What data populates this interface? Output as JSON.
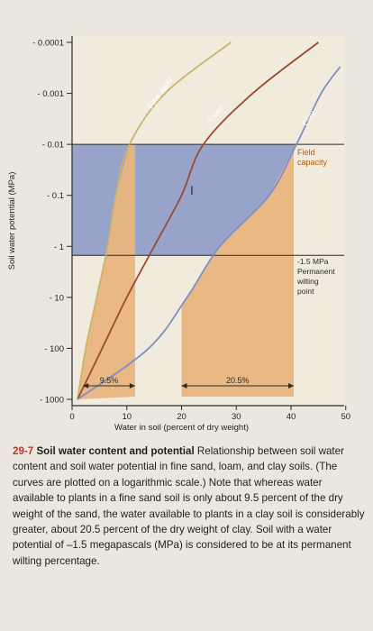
{
  "chart_data": {
    "type": "line",
    "title": "",
    "xlabel": "Water in soil (percent of dry weight)",
    "ylabel": "Soil water potential (MPa)",
    "x_ticks": [
      0,
      10,
      20,
      30,
      40,
      50
    ],
    "xlim": [
      0,
      50
    ],
    "y_scale": "log",
    "y_ticks": [
      {
        "value": -0.0001,
        "label": "- 0.0001"
      },
      {
        "value": -0.001,
        "label": "- 0.001"
      },
      {
        "value": -0.01,
        "label": "- 0.01"
      },
      {
        "value": -0.1,
        "label": "- 0.1"
      },
      {
        "value": -1,
        "label": "- 1"
      },
      {
        "value": -10,
        "label": "- 10"
      },
      {
        "value": -100,
        "label": "- 100"
      },
      {
        "value": -1000,
        "label": "- 1000"
      }
    ],
    "series": [
      {
        "name": "Fine sand",
        "color": "#c9b46a",
        "points": [
          [
            1,
            -1000
          ],
          [
            2.5,
            -100
          ],
          [
            4.5,
            -10
          ],
          [
            6.5,
            -1
          ],
          [
            8,
            -0.1
          ],
          [
            10.5,
            -0.01
          ],
          [
            17,
            -0.001
          ],
          [
            29,
            -0.0001
          ]
        ]
      },
      {
        "name": "Loam",
        "color": "#9a4a2e",
        "points": [
          [
            1,
            -1000
          ],
          [
            5.5,
            -100
          ],
          [
            10,
            -10
          ],
          [
            15,
            -1
          ],
          [
            20,
            -0.1
          ],
          [
            24,
            -0.01
          ],
          [
            33,
            -0.001
          ],
          [
            45,
            -0.0001
          ]
        ]
      },
      {
        "name": "Clay",
        "color": "#7e8fc2",
        "points": [
          [
            1,
            -1000
          ],
          [
            14,
            -100
          ],
          [
            21,
            -10
          ],
          [
            27,
            -1
          ],
          [
            36,
            -0.1
          ],
          [
            41,
            -0.01
          ],
          [
            45.5,
            -0.001
          ],
          [
            49,
            -0.0003
          ]
        ]
      }
    ],
    "reference_lines": [
      {
        "name": "field-capacity",
        "value": -0.01,
        "label_lines": [
          "Field",
          "capacity"
        ]
      },
      {
        "name": "permanent-wilting-point",
        "value": -1.5,
        "label_lines": [
          "-1.5 MPa",
          "Permanent",
          "wilting",
          "point"
        ]
      }
    ],
    "available_water_ranges": [
      {
        "name": "fine-sand",
        "x_from": 2,
        "x_to": 11.5,
        "label": "9.5%"
      },
      {
        "name": "clay",
        "x_from": 20,
        "x_to": 40.5,
        "label": "20.5%"
      }
    ],
    "colors": {
      "background": "#ece7de",
      "plot_background": "#f1ebdd",
      "available_water": "#e8b57e",
      "gravitational_water": "#8e9bc7",
      "axis": "#2b2b2b"
    }
  },
  "caption": {
    "number": "29-7",
    "title": "Soil water content and potential",
    "text": "Relationship between soil water content and soil water potential in fine sand, loam, and clay soils. (The curves are plotted on a logarithmic scale.) Note that whereas water available to plants in a fine sand soil is only about 9.5 percent of the dry weight of the sand, the water available to plants in a clay soil is considerably greater, about 20.5 percent of the dry weight of clay. Soil with a water potential of –1.5 megapascals (MPa) is considered to be at its permanent wilting percentage."
  }
}
